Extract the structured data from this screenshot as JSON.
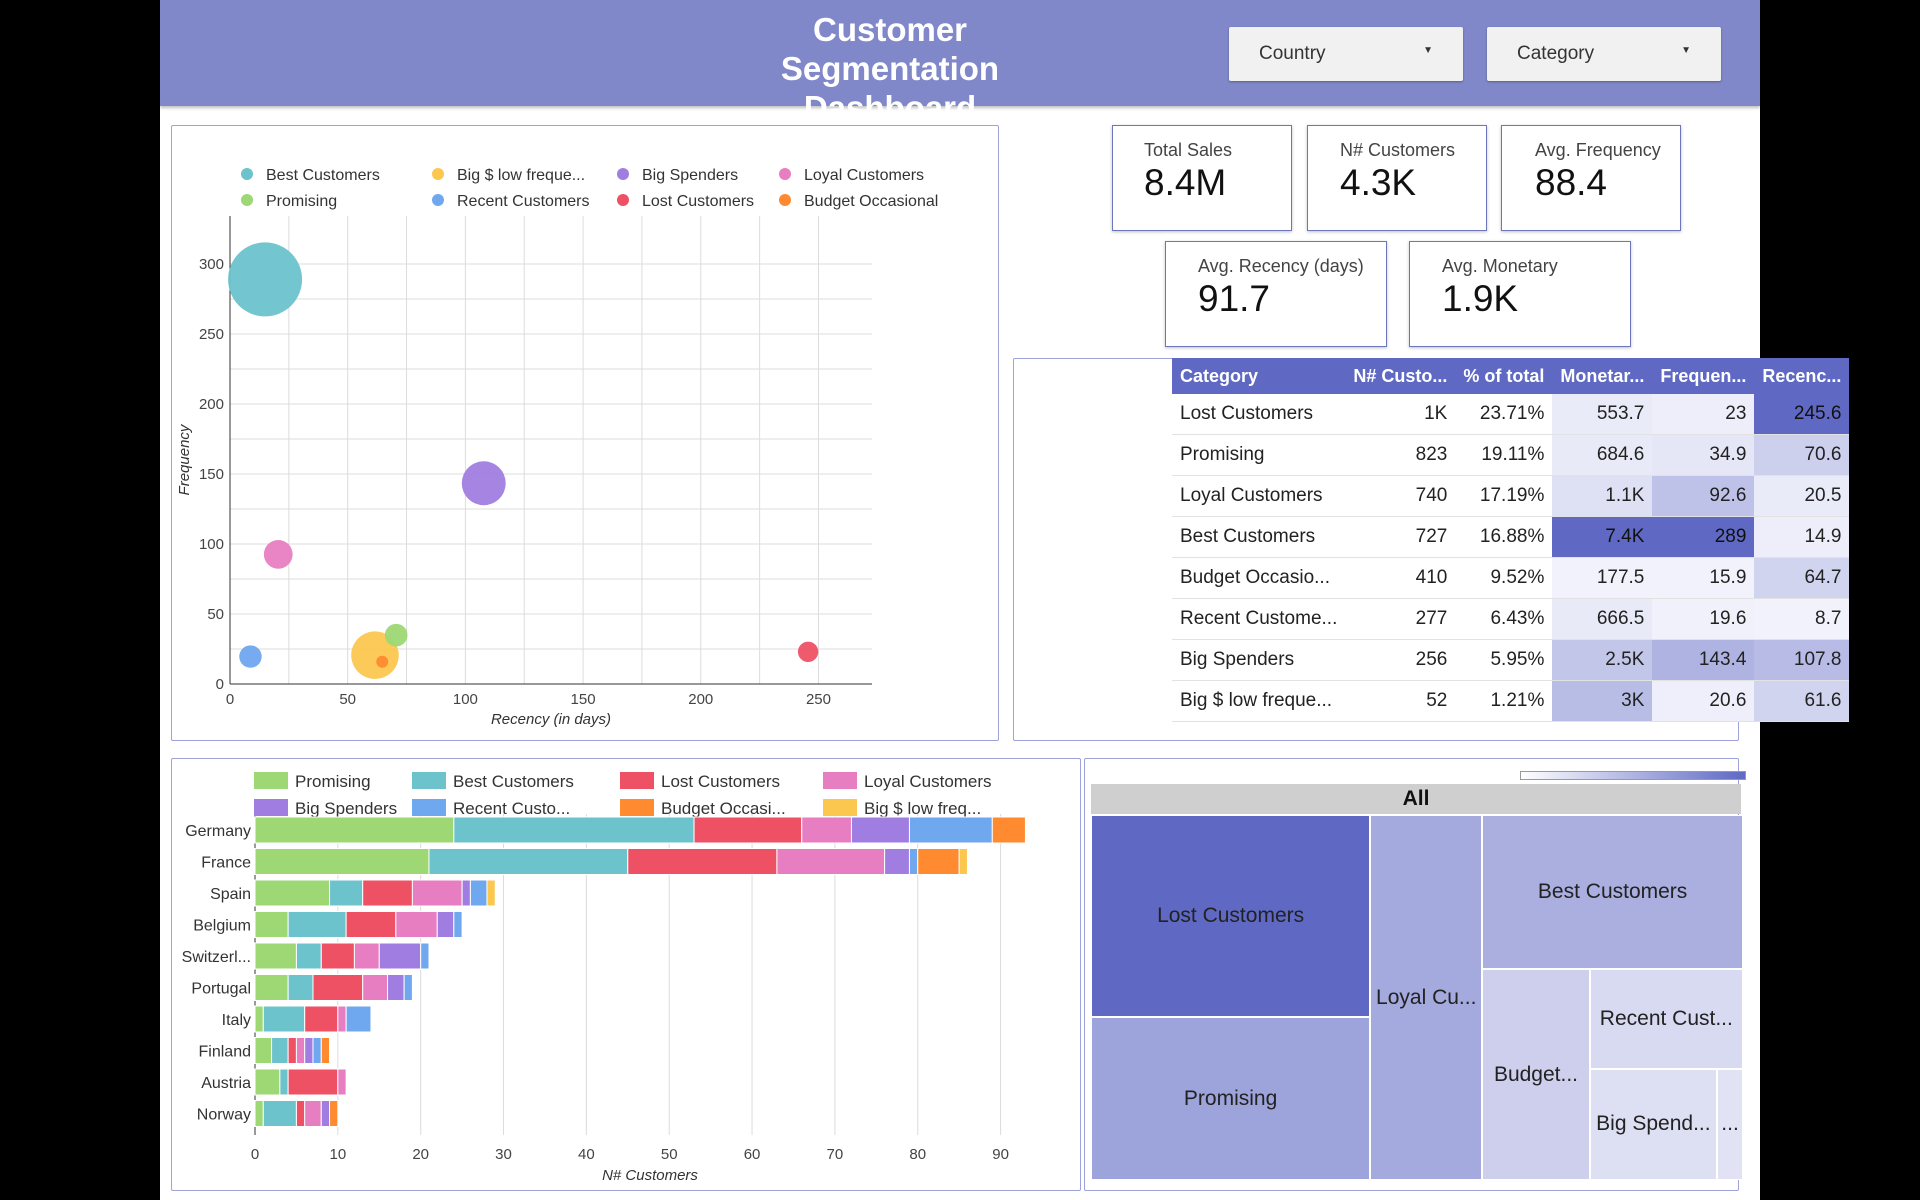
{
  "header": {
    "title_line1": "Customer Segmentation",
    "title_line2": "Dashboard",
    "filters": [
      {
        "label": "Country"
      },
      {
        "label": "Category"
      }
    ]
  },
  "colors": {
    "header_bg": "#8088c9",
    "accent": "#5f69c4",
    "Best Customers": "#6cc3cc",
    "Big $ low frequency": "#fbc74f",
    "Big Spenders": "#a07de0",
    "Loyal Customers": "#e87ec2",
    "Promising": "#9dd874",
    "Recent Customers": "#6fa8ee",
    "Lost Customers": "#ee5164",
    "Budget Occasional": "#ff8a30"
  },
  "kpis": [
    {
      "label": "Total Sales",
      "value": "8.4M"
    },
    {
      "label": "N# Customers",
      "value": "4.3K"
    },
    {
      "label": "Avg. Frequency",
      "value": "88.4"
    },
    {
      "label": "Avg. Recency (days)",
      "value": "91.7"
    },
    {
      "label": "Avg. Monetary",
      "value": "1.9K"
    }
  ],
  "table": {
    "headers": [
      "Category",
      "N# Custo...",
      "% of total",
      "Monetar...",
      "Frequen...",
      "Recenc..."
    ],
    "rows": [
      {
        "category": "Lost Customers",
        "customers": "1K",
        "pct": "23.71%",
        "monetary": "553.7",
        "frequency": "23",
        "recency": "245.6",
        "m": 0.05,
        "f": 0.03,
        "r": 1.0
      },
      {
        "category": "Promising",
        "customers": "823",
        "pct": "19.11%",
        "monetary": "684.6",
        "frequency": "34.9",
        "recency": "70.6",
        "m": 0.06,
        "f": 0.08,
        "r": 0.25
      },
      {
        "category": "Loyal Customers",
        "customers": "740",
        "pct": "17.19%",
        "monetary": "1.1K",
        "frequency": "92.6",
        "recency": "20.5",
        "m": 0.13,
        "f": 0.35,
        "r": 0.05
      },
      {
        "category": "Best Customers",
        "customers": "727",
        "pct": "16.88%",
        "monetary": "7.4K",
        "frequency": "289",
        "recency": "14.9",
        "m": 1.0,
        "f": 1.0,
        "r": 0.03
      },
      {
        "category": "Budget Occasio...",
        "customers": "410",
        "pct": "9.52%",
        "monetary": "177.5",
        "frequency": "15.9",
        "recency": "64.7",
        "m": 0.0,
        "f": 0.0,
        "r": 0.22
      },
      {
        "category": "Recent Custome...",
        "customers": "277",
        "pct": "6.43%",
        "monetary": "666.5",
        "frequency": "19.6",
        "recency": "8.7",
        "m": 0.06,
        "f": 0.01,
        "r": 0.0
      },
      {
        "category": "Big Spenders",
        "customers": "256",
        "pct": "5.95%",
        "monetary": "2.5K",
        "frequency": "143.4",
        "recency": "107.8",
        "m": 0.32,
        "f": 0.46,
        "r": 0.4
      },
      {
        "category": "Big $ low freque...",
        "customers": "52",
        "pct": "1.21%",
        "monetary": "3K",
        "frequency": "20.6",
        "recency": "61.6",
        "m": 0.39,
        "f": 0.02,
        "r": 0.22
      }
    ]
  },
  "chart_data": [
    {
      "type": "scatter",
      "xlabel": "Recency (in days)",
      "ylabel": "Frequency",
      "xlim": [
        0,
        260
      ],
      "ylim": [
        0,
        320
      ],
      "xticks": [
        0,
        50,
        100,
        150,
        200,
        250
      ],
      "yticks": [
        0,
        50,
        100,
        150,
        200,
        250,
        300
      ],
      "grid": true,
      "legend_position": "top",
      "legend": [
        "Best Customers",
        "Big $ low freque...",
        "Big Spenders",
        "Loyal Customers",
        "Promising",
        "Recent Customers",
        "Lost Customers",
        "Budget Occasional"
      ],
      "points": [
        {
          "name": "Best Customers",
          "x": 14.9,
          "y": 289,
          "size": 727
        },
        {
          "name": "Big $ low frequency",
          "x": 61.6,
          "y": 20.6,
          "size": 300
        },
        {
          "name": "Big Spenders",
          "x": 107.8,
          "y": 143.4,
          "size": 256
        },
        {
          "name": "Loyal Customers",
          "x": 20.5,
          "y": 92.6,
          "size": 110
        },
        {
          "name": "Promising",
          "x": 70.6,
          "y": 34.9,
          "size": 68
        },
        {
          "name": "Recent Customers",
          "x": 8.7,
          "y": 19.6,
          "size": 67
        },
        {
          "name": "Lost Customers",
          "x": 245.6,
          "y": 23,
          "size": 55
        },
        {
          "name": "Budget Occasional",
          "x": 64.7,
          "y": 15.9,
          "size": 18
        }
      ]
    },
    {
      "type": "bar",
      "orientation": "horizontal",
      "stacked": true,
      "xlabel": "N# Customers",
      "xlim": [
        0,
        95
      ],
      "xticks": [
        0,
        10,
        20,
        30,
        40,
        50,
        60,
        70,
        80,
        90
      ],
      "legend_position": "top",
      "legend": [
        "Promising",
        "Best Customers",
        "Lost Customers",
        "Loyal Customers",
        "Big Spenders",
        "Recent Custo...",
        "Budget Occasi...",
        "Big $ low freq..."
      ],
      "categories": [
        "Germany",
        "France",
        "Spain",
        "Belgium",
        "Switzerl...",
        "Portugal",
        "Italy",
        "Finland",
        "Austria",
        "Norway"
      ],
      "series": [
        {
          "name": "Promising",
          "values": [
            24,
            21,
            9,
            4,
            5,
            4,
            1,
            2,
            3,
            1
          ]
        },
        {
          "name": "Best Customers",
          "values": [
            29,
            24,
            4,
            7,
            3,
            3,
            5,
            2,
            1,
            4
          ]
        },
        {
          "name": "Lost Customers",
          "values": [
            13,
            18,
            6,
            6,
            4,
            6,
            4,
            1,
            6,
            1
          ]
        },
        {
          "name": "Loyal Customers",
          "values": [
            6,
            13,
            6,
            5,
            3,
            3,
            1,
            1,
            1,
            2
          ]
        },
        {
          "name": "Big Spenders",
          "values": [
            7,
            3,
            1,
            2,
            5,
            2,
            0,
            1,
            0,
            1
          ]
        },
        {
          "name": "Recent Customers",
          "values": [
            10,
            1,
            2,
            1,
            1,
            1,
            3,
            1,
            0,
            0
          ]
        },
        {
          "name": "Budget Occasional",
          "values": [
            4,
            5,
            0,
            0,
            0,
            0,
            0,
            1,
            0,
            1
          ]
        },
        {
          "name": "Big $ low frequency",
          "values": [
            0,
            1,
            1,
            0,
            0,
            0,
            0,
            0,
            0,
            0
          ]
        }
      ]
    },
    {
      "type": "treemap",
      "root_label": "All",
      "items": [
        {
          "label": "Lost Customers",
          "value": 1021,
          "shade": 1.0
        },
        {
          "label": "Promising",
          "value": 823,
          "shade": 0.55
        },
        {
          "label": "Loyal Cu...",
          "value": 740,
          "shade": 0.5
        },
        {
          "label": "Best Customers",
          "value": 727,
          "shade": 0.45
        },
        {
          "label": "Budget...",
          "value": 410,
          "shade": 0.2
        },
        {
          "label": "Recent Cust...",
          "value": 277,
          "shade": 0.12
        },
        {
          "label": "Big Spend...",
          "value": 256,
          "shade": 0.08
        },
        {
          "label": "...",
          "value": 52,
          "shade": 0.05
        }
      ]
    }
  ]
}
